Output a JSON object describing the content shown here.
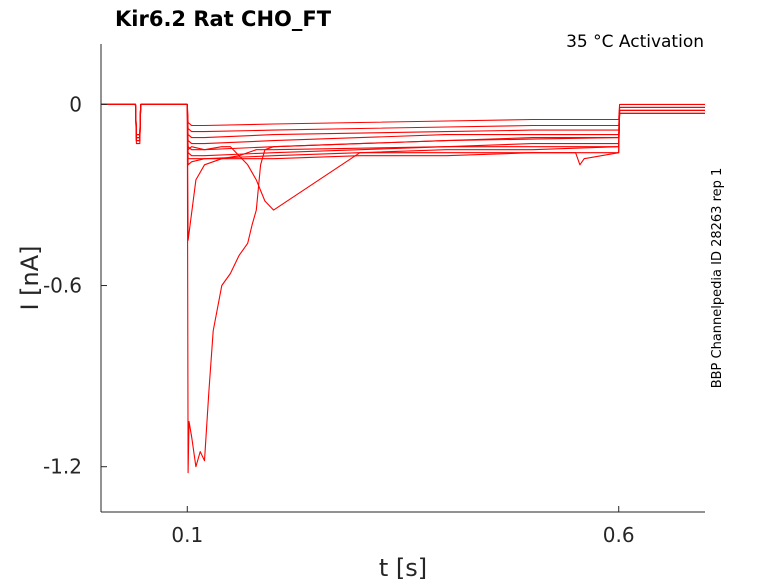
{
  "chart_data": {
    "type": "line",
    "title": "Kir6.2  Rat  CHO_FT",
    "subtitle": "35 °C  Activation",
    "xlabel": "t [s]",
    "ylabel": "I [nA]",
    "side_note": "BBP Channelpedia ID 28263 rep 1",
    "xlim": [
      0.0,
      0.7
    ],
    "ylim": [
      -1.35,
      0.2
    ],
    "x_ticks": [
      {
        "value": 0.1,
        "label": "0.1"
      },
      {
        "value": 0.6,
        "label": "0.6"
      }
    ],
    "y_ticks": [
      {
        "value": 0,
        "label": "0"
      },
      {
        "value": -0.6,
        "label": "-0.6"
      },
      {
        "value": -1.2,
        "label": "-1.2"
      }
    ],
    "grid": false,
    "line_color": "#ff0000",
    "series": [
      {
        "x": [
          0.0,
          0.04,
          0.041,
          0.045,
          0.046,
          0.099,
          0.1,
          0.101,
          0.105,
          0.12,
          0.2,
          0.3,
          0.4,
          0.5,
          0.6,
          0.601,
          0.7
        ],
        "y": [
          0.0,
          0.0,
          -0.1,
          -0.1,
          0.0,
          0.0,
          0.0,
          -0.06,
          -0.07,
          -0.07,
          -0.065,
          -0.06,
          -0.055,
          -0.05,
          -0.05,
          0.0,
          0.0
        ]
      },
      {
        "x": [
          0.0,
          0.04,
          0.041,
          0.045,
          0.046,
          0.099,
          0.1,
          0.101,
          0.105,
          0.12,
          0.2,
          0.3,
          0.4,
          0.5,
          0.6,
          0.601,
          0.7
        ],
        "y": [
          0.0,
          0.0,
          -0.11,
          -0.11,
          0.0,
          0.0,
          0.0,
          -0.08,
          -0.09,
          -0.09,
          -0.085,
          -0.08,
          -0.075,
          -0.07,
          -0.07,
          -0.01,
          -0.01
        ]
      },
      {
        "x": [
          0.0,
          0.04,
          0.041,
          0.045,
          0.046,
          0.099,
          0.1,
          0.101,
          0.105,
          0.12,
          0.2,
          0.3,
          0.4,
          0.5,
          0.6,
          0.601,
          0.7
        ],
        "y": [
          0.0,
          0.0,
          -0.12,
          -0.12,
          0.0,
          0.0,
          0.0,
          -0.1,
          -0.11,
          -0.11,
          -0.1,
          -0.095,
          -0.09,
          -0.085,
          -0.085,
          -0.02,
          -0.02
        ]
      },
      {
        "x": [
          0.0,
          0.04,
          0.041,
          0.045,
          0.046,
          0.099,
          0.1,
          0.101,
          0.105,
          0.12,
          0.2,
          0.3,
          0.4,
          0.5,
          0.6,
          0.601,
          0.7
        ],
        "y": [
          0.0,
          0.0,
          -0.1,
          -0.1,
          0.0,
          0.0,
          0.0,
          -0.12,
          -0.13,
          -0.13,
          -0.12,
          -0.11,
          -0.1,
          -0.1,
          -0.1,
          -0.03,
          -0.03
        ]
      },
      {
        "x": [
          0.0,
          0.04,
          0.041,
          0.045,
          0.046,
          0.099,
          0.1,
          0.101,
          0.105,
          0.12,
          0.2,
          0.3,
          0.4,
          0.5,
          0.6,
          0.601,
          0.7
        ],
        "y": [
          0.0,
          0.0,
          -0.11,
          -0.11,
          0.0,
          0.0,
          0.0,
          -0.14,
          -0.15,
          -0.15,
          -0.14,
          -0.13,
          -0.12,
          -0.115,
          -0.11,
          -0.03,
          -0.03
        ]
      },
      {
        "x": [
          0.0,
          0.04,
          0.041,
          0.045,
          0.046,
          0.099,
          0.1,
          0.101,
          0.105,
          0.12,
          0.2,
          0.3,
          0.4,
          0.5,
          0.6,
          0.601,
          0.7
        ],
        "y": [
          0.0,
          0.0,
          -0.12,
          -0.12,
          0.0,
          0.0,
          0.0,
          -0.16,
          -0.17,
          -0.17,
          -0.16,
          -0.15,
          -0.14,
          -0.13,
          -0.13,
          -0.03,
          -0.03
        ]
      },
      {
        "x": [
          0.0,
          0.04,
          0.041,
          0.045,
          0.046,
          0.099,
          0.1,
          0.101,
          0.105,
          0.12,
          0.2,
          0.3,
          0.4,
          0.5,
          0.6,
          0.601,
          0.7
        ],
        "y": [
          0.0,
          0.0,
          -0.11,
          -0.11,
          0.0,
          0.0,
          0.0,
          -0.18,
          -0.18,
          -0.18,
          -0.17,
          -0.16,
          -0.15,
          -0.15,
          -0.14,
          -0.03,
          -0.03
        ]
      },
      {
        "x": [
          0.0,
          0.04,
          0.041,
          0.045,
          0.046,
          0.099,
          0.1,
          0.101,
          0.105,
          0.12,
          0.2,
          0.3,
          0.4,
          0.5,
          0.6,
          0.601,
          0.7
        ],
        "y": [
          0.0,
          0.0,
          -0.12,
          -0.12,
          0.0,
          0.0,
          0.0,
          -0.2,
          -0.19,
          -0.18,
          -0.18,
          -0.17,
          -0.17,
          -0.16,
          -0.16,
          -0.02,
          -0.02
        ]
      },
      {
        "x": [
          0.0,
          0.04,
          0.041,
          0.045,
          0.046,
          0.099,
          0.1,
          0.101,
          0.11,
          0.12,
          0.14,
          0.16,
          0.18,
          0.2,
          0.4,
          0.6,
          0.601,
          0.7
        ],
        "y": [
          0.0,
          0.0,
          -0.11,
          -0.11,
          0.0,
          0.0,
          0.0,
          -0.45,
          -0.25,
          -0.2,
          -0.18,
          -0.17,
          -0.15,
          -0.15,
          -0.14,
          -0.14,
          -0.02,
          -0.02
        ]
      },
      {
        "x": [
          0.0,
          0.04,
          0.041,
          0.045,
          0.046,
          0.099,
          0.1,
          0.101,
          0.105,
          0.12,
          0.14,
          0.15,
          0.16,
          0.17,
          0.18,
          0.19,
          0.2,
          0.3,
          0.5,
          0.55,
          0.555,
          0.56,
          0.6,
          0.601,
          0.7
        ],
        "y": [
          0.0,
          0.0,
          -0.13,
          -0.13,
          0.0,
          0.0,
          0.0,
          -0.15,
          -0.14,
          -0.15,
          -0.14,
          -0.14,
          -0.17,
          -0.2,
          -0.25,
          -0.32,
          -0.35,
          -0.16,
          -0.16,
          -0.16,
          -0.2,
          -0.18,
          -0.16,
          -0.02,
          -0.02
        ]
      },
      {
        "x": [
          0.0,
          0.04,
          0.041,
          0.045,
          0.046,
          0.099,
          0.1,
          0.101,
          0.102,
          0.105,
          0.11,
          0.115,
          0.12,
          0.125,
          0.13,
          0.14,
          0.15,
          0.16,
          0.17,
          0.175,
          0.18,
          0.185,
          0.19,
          0.2,
          0.3,
          0.4,
          0.5,
          0.6,
          0.601,
          0.7
        ],
        "y": [
          0.0,
          0.0,
          -0.1,
          -0.1,
          0.0,
          0.0,
          0.0,
          -1.22,
          -1.05,
          -1.1,
          -1.2,
          -1.15,
          -1.18,
          -0.95,
          -0.75,
          -0.6,
          -0.56,
          -0.5,
          -0.46,
          -0.4,
          -0.35,
          -0.2,
          -0.15,
          -0.14,
          -0.13,
          -0.12,
          -0.11,
          -0.11,
          -0.01,
          -0.01
        ]
      }
    ]
  }
}
